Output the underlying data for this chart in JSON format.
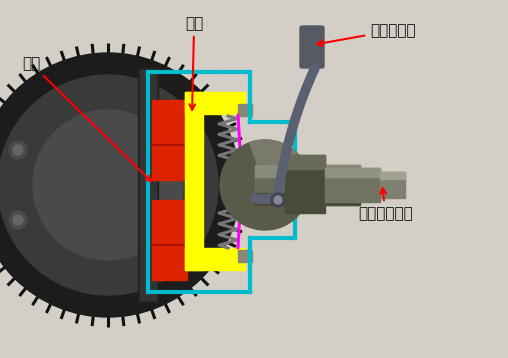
{
  "bg": "#d3cfc7",
  "labels": {
    "flywheel": "飞轮",
    "pressure_plate": "壓板",
    "clutch_pedal": "離合器踏板",
    "transmission": "變速箱輸入軸"
  },
  "colors": {
    "dark": "#1a1a1a",
    "dark2": "#2d2d2d",
    "gray": "#555555",
    "gray2": "#777777",
    "gray3": "#999999",
    "yellow": "#ffff00",
    "red_pad": "#dd2200",
    "cyan": "#00bbcc",
    "magenta": "#ff00ff",
    "steel_light": "#8a8a7a",
    "steel_mid": "#6a6a5a",
    "steel_dark": "#4a4a3a",
    "arrow": "#ff0000",
    "pedal_gray": "#5a6070",
    "pedal_dark": "#404550"
  }
}
